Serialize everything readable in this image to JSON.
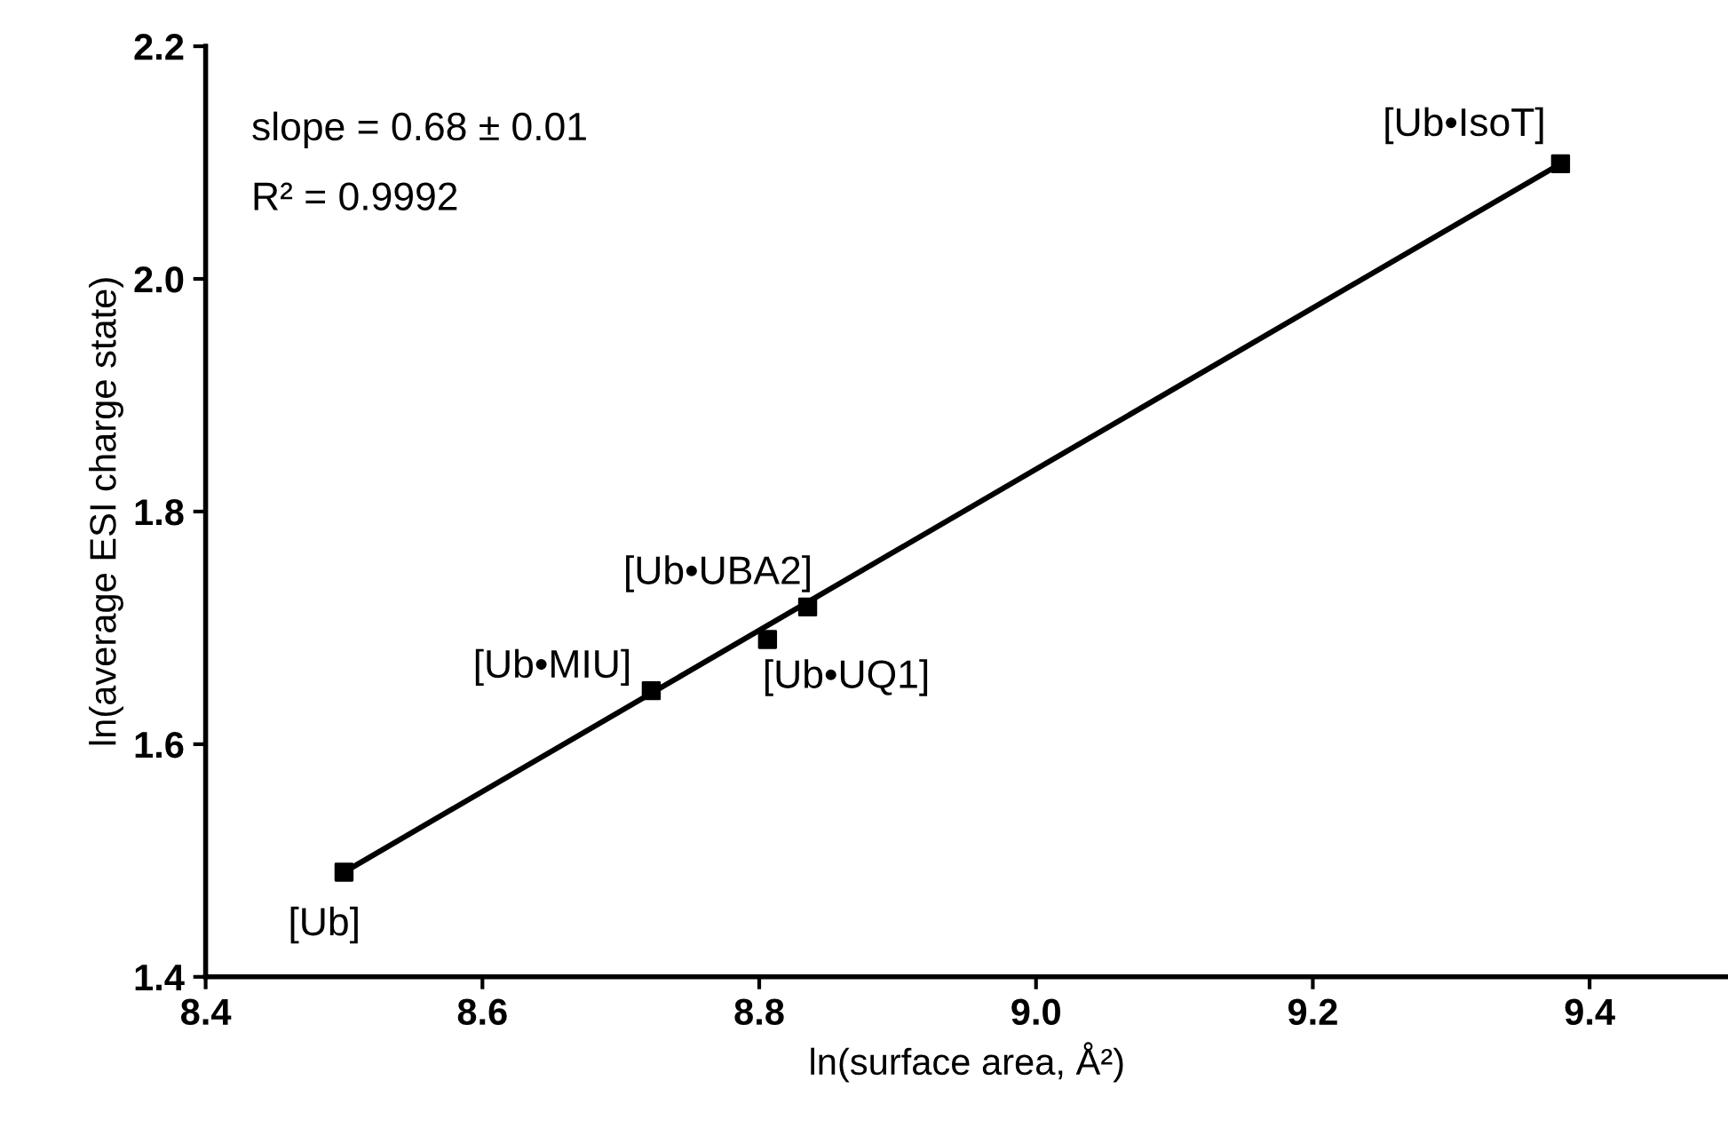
{
  "chart_data": {
    "type": "scatter",
    "xlabel": "ln(surface area, Å²)",
    "ylabel": "ln(average ESI charge state)",
    "xlim": [
      8.4,
      9.5
    ],
    "xticks": [
      {
        "value": 8.4,
        "label": "8.4"
      },
      {
        "value": 8.6,
        "label": "8.6"
      },
      {
        "value": 8.8,
        "label": "8.8"
      },
      {
        "value": 9.0,
        "label": "9.0"
      },
      {
        "value": 9.2,
        "label": "9.2"
      },
      {
        "value": 9.4,
        "label": "9.4"
      }
    ],
    "ylim": [
      1.4,
      2.2
    ],
    "yticks": [
      {
        "value": 1.4,
        "label": "1.4"
      },
      {
        "value": 1.6,
        "label": "1.6"
      },
      {
        "value": 1.8,
        "label": "1.8"
      },
      {
        "value": 2.0,
        "label": "2.0"
      },
      {
        "value": 2.2,
        "label": "2.2"
      }
    ],
    "grid": false,
    "legend": false,
    "series": [
      {
        "marker": "square",
        "color": "#000000",
        "x": [
          8.5,
          8.722,
          8.806,
          8.835,
          9.379
        ],
        "values": [
          1.49,
          1.646,
          1.69,
          1.718,
          2.099
        ]
      },
      {
        "type": "line",
        "color": "#000000",
        "x": [
          8.5,
          9.379
        ],
        "values": [
          1.49,
          2.099
        ]
      }
    ],
    "annotations": [
      "slope = 0.68 ± 0.01",
      "R² = 0.9992",
      {
        "text": "[Ub]",
        "x": 8.5,
        "y": 1.49
      },
      {
        "text": "[Ub•MIU]",
        "x": 8.722,
        "y": 1.646
      },
      {
        "text": "[Ub•UQ1]",
        "x": 8.806,
        "y": 1.69
      },
      {
        "text": "[Ub•UBA2]",
        "x": 8.835,
        "y": 1.718
      },
      {
        "text": "[Ub•IsoT]",
        "x": 9.379,
        "y": 2.099
      }
    ]
  }
}
